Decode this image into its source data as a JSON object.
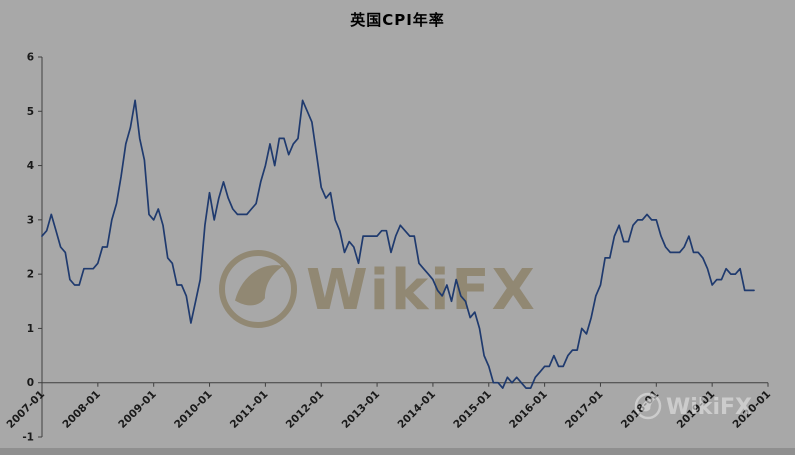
{
  "page": {
    "background_color": "#a8a8a8"
  },
  "watermarks": {
    "center_text": "WikiFX",
    "center_color": "rgba(118,98,50,0.45)",
    "corner_text": "WikiFX",
    "corner_color": "rgba(228,228,228,0.60)",
    "logo_icon": "wikifx-eagle-badge-icon"
  },
  "chart_data": {
    "type": "line",
    "title": "英国CPI年率",
    "xlabel": "",
    "ylabel": "",
    "ylim": [
      -1,
      6
    ],
    "yticks": [
      6,
      5,
      4,
      3,
      2,
      1,
      0,
      -1
    ],
    "xtick_labels": [
      "2007-01",
      "2008-01",
      "2009-01",
      "2010-01",
      "2011-01",
      "2012-01",
      "2013-01",
      "2014-01",
      "2015-01",
      "2016-01",
      "2017-01",
      "2018-01",
      "2019-01",
      "2020-01"
    ],
    "grid": false,
    "legend_position": "none",
    "axis_color": "#3f3f3f",
    "plot_background": "#a8a8a8",
    "series": [
      {
        "name": "英国CPI年率",
        "color": "#1f3a6e",
        "start": "2007-01",
        "frequency": "monthly",
        "values": [
          2.7,
          2.8,
          3.1,
          2.8,
          2.5,
          2.4,
          1.9,
          1.8,
          1.8,
          2.1,
          2.1,
          2.1,
          2.2,
          2.5,
          2.5,
          3.0,
          3.3,
          3.8,
          4.4,
          4.7,
          5.2,
          4.5,
          4.1,
          3.1,
          3.0,
          3.2,
          2.9,
          2.3,
          2.2,
          1.8,
          1.8,
          1.6,
          1.1,
          1.5,
          1.9,
          2.9,
          3.5,
          3.0,
          3.4,
          3.7,
          3.4,
          3.2,
          3.1,
          3.1,
          3.1,
          3.2,
          3.3,
          3.7,
          4.0,
          4.4,
          4.0,
          4.5,
          4.5,
          4.2,
          4.4,
          4.5,
          5.2,
          5.0,
          4.8,
          4.2,
          3.6,
          3.4,
          3.5,
          3.0,
          2.8,
          2.4,
          2.6,
          2.5,
          2.2,
          2.7,
          2.7,
          2.7,
          2.7,
          2.8,
          2.8,
          2.4,
          2.7,
          2.9,
          2.8,
          2.7,
          2.7,
          2.2,
          2.1,
          2.0,
          1.9,
          1.7,
          1.6,
          1.8,
          1.5,
          1.9,
          1.6,
          1.5,
          1.2,
          1.3,
          1.0,
          0.5,
          0.3,
          0.0,
          0.0,
          -0.1,
          0.1,
          0.0,
          0.1,
          0.0,
          -0.1,
          -0.1,
          0.1,
          0.2,
          0.3,
          0.3,
          0.5,
          0.3,
          0.3,
          0.5,
          0.6,
          0.6,
          1.0,
          0.9,
          1.2,
          1.6,
          1.8,
          2.3,
          2.3,
          2.7,
          2.9,
          2.6,
          2.6,
          2.9,
          3.0,
          3.0,
          3.1,
          3.0,
          3.0,
          2.7,
          2.5,
          2.4,
          2.4,
          2.4,
          2.5,
          2.7,
          2.4,
          2.4,
          2.3,
          2.1,
          1.8,
          1.9,
          1.9,
          2.1,
          2.0,
          2.0,
          2.1,
          1.7,
          1.7,
          1.7
        ]
      }
    ]
  }
}
